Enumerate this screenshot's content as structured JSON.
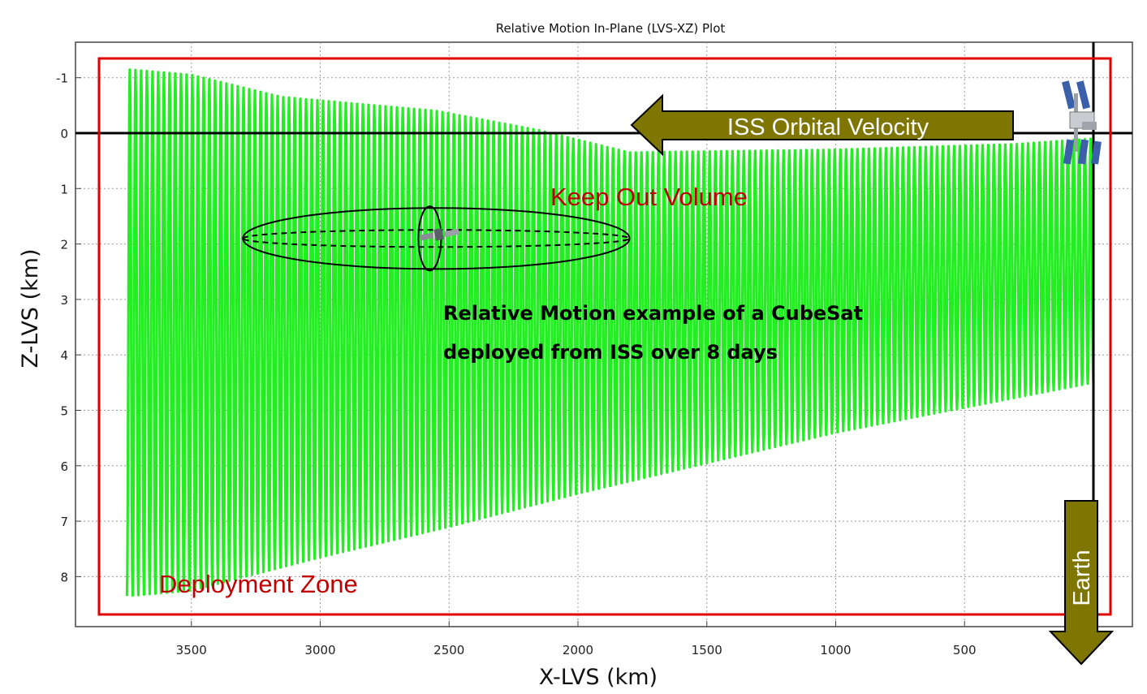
{
  "chart_data": {
    "type": "line",
    "title": "Relative Motion In-Plane (LVS-XZ) Plot",
    "xlabel": "X-LVS (km)",
    "ylabel": "Z-LVS (km)",
    "xlim": [
      3900,
      -50
    ],
    "ylim": [
      8.8,
      -1.4
    ],
    "x_reversed": true,
    "y_reversed": true,
    "xticks": [
      3500,
      3000,
      2500,
      2000,
      1500,
      1000,
      500
    ],
    "yticks": [
      -1,
      0,
      1,
      2,
      3,
      4,
      5,
      6,
      7,
      8
    ],
    "grid": true,
    "series": [
      {
        "color": "#22ee22",
        "description_points": {
          "x_start": 0,
          "x_end": 3750,
          "oscillations": 170,
          "upper_envelope": [
            [
              0,
              0.1
            ],
            [
              300,
              0.2
            ],
            [
              1000,
              0.3
            ],
            [
              1800,
              0.35
            ],
            [
              2150,
              -0.05
            ],
            [
              2550,
              -0.4
            ],
            [
              3150,
              -0.65
            ],
            [
              3500,
              -1.05
            ],
            [
              3750,
              -1.15
            ]
          ],
          "lower_envelope": [
            [
              0,
              4.5
            ],
            [
              1000,
              5.4
            ],
            [
              2000,
              6.5
            ],
            [
              2500,
              7.1
            ],
            [
              3000,
              7.65
            ],
            [
              3500,
              8.25
            ],
            [
              3750,
              8.35
            ]
          ]
        }
      }
    ],
    "annotations": {
      "keep_out": "Keep Out Volume",
      "deployment": "Deployment Zone",
      "velocity": "ISS Orbital Velocity",
      "earth": "Earth",
      "example_line1": "Relative Motion example of a CubeSat",
      "example_line2": "deployed from ISS over 8 days"
    },
    "keep_out_ellipse": {
      "cx_km": 2550,
      "cz_km": 1.9,
      "half_width_km": 750,
      "half_height_km": 0.55
    }
  }
}
